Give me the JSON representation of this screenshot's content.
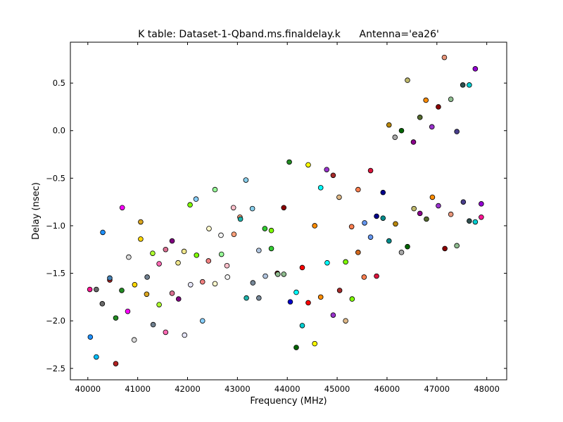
{
  "chart_data": {
    "type": "scatter",
    "title": "K table: Dataset-1-Qband.ms.finaldelay.k      Antenna='ea26'",
    "xlabel": "Frequency (MHz)",
    "ylabel": "Delay (nsec)",
    "xlim": [
      39650,
      48400
    ],
    "ylim": [
      -2.62,
      0.93
    ],
    "xticks": [
      40000,
      41000,
      42000,
      43000,
      44000,
      45000,
      46000,
      47000,
      48000
    ],
    "yticks": [
      -2.5,
      -2.0,
      -1.5,
      -1.0,
      -0.5,
      0.0,
      0.5
    ],
    "grid": false,
    "points": [
      {
        "x": 40040,
        "y": -1.67,
        "color": "#ff1493"
      },
      {
        "x": 40050,
        "y": -2.17,
        "color": "#1e90ff"
      },
      {
        "x": 40170,
        "y": -1.67,
        "color": "#696969"
      },
      {
        "x": 40170,
        "y": -2.38,
        "color": "#00bfff"
      },
      {
        "x": 40290,
        "y": -1.82,
        "color": "#696969"
      },
      {
        "x": 40300,
        "y": -1.07,
        "color": "#1e90ff"
      },
      {
        "x": 40440,
        "y": -1.57,
        "color": "#b22222"
      },
      {
        "x": 40440,
        "y": -1.55,
        "color": "#4682b4"
      },
      {
        "x": 40560,
        "y": -1.97,
        "color": "#228b22"
      },
      {
        "x": 40560,
        "y": -2.45,
        "color": "#b22222"
      },
      {
        "x": 40680,
        "y": -1.68,
        "color": "#228b22"
      },
      {
        "x": 40690,
        "y": -0.81,
        "color": "#ff00ff"
      },
      {
        "x": 40800,
        "y": -1.9,
        "color": "#ff00ff"
      },
      {
        "x": 40820,
        "y": -1.33,
        "color": "#dcdcdc"
      },
      {
        "x": 40930,
        "y": -2.2,
        "color": "#dcdcdc"
      },
      {
        "x": 40940,
        "y": -1.62,
        "color": "#ffd700"
      },
      {
        "x": 41060,
        "y": -0.96,
        "color": "#daa520"
      },
      {
        "x": 41060,
        "y": -1.14,
        "color": "#ffd700"
      },
      {
        "x": 41180,
        "y": -1.72,
        "color": "#daa520"
      },
      {
        "x": 41190,
        "y": -1.54,
        "color": "#708090"
      },
      {
        "x": 41300,
        "y": -1.29,
        "color": "#adff2f"
      },
      {
        "x": 41310,
        "y": -2.04,
        "color": "#708090"
      },
      {
        "x": 41430,
        "y": -1.4,
        "color": "#ff69b4"
      },
      {
        "x": 41430,
        "y": -1.83,
        "color": "#adff2f"
      },
      {
        "x": 41560,
        "y": -1.25,
        "color": "#db7093"
      },
      {
        "x": 41560,
        "y": -2.12,
        "color": "#ff69b4"
      },
      {
        "x": 41690,
        "y": -1.16,
        "color": "#800080"
      },
      {
        "x": 41690,
        "y": -1.71,
        "color": "#db7093"
      },
      {
        "x": 41810,
        "y": -1.39,
        "color": "#f0e68c"
      },
      {
        "x": 41820,
        "y": -1.77,
        "color": "#800080"
      },
      {
        "x": 41930,
        "y": -1.27,
        "color": "#f0e68c"
      },
      {
        "x": 41940,
        "y": -2.15,
        "color": "#e6e6fa"
      },
      {
        "x": 42050,
        "y": -0.78,
        "color": "#7fff00"
      },
      {
        "x": 42060,
        "y": -1.62,
        "color": "#e6e6fa"
      },
      {
        "x": 42170,
        "y": -0.72,
        "color": "#87cefa"
      },
      {
        "x": 42180,
        "y": -1.31,
        "color": "#7fff00"
      },
      {
        "x": 42300,
        "y": -1.59,
        "color": "#f08080"
      },
      {
        "x": 42300,
        "y": -2.0,
        "color": "#87cefa"
      },
      {
        "x": 42420,
        "y": -1.37,
        "color": "#f08080"
      },
      {
        "x": 42430,
        "y": -1.03,
        "color": "#fffacd"
      },
      {
        "x": 42550,
        "y": -0.62,
        "color": "#98fb98"
      },
      {
        "x": 42550,
        "y": -1.61,
        "color": "#fffacd"
      },
      {
        "x": 42670,
        "y": -1.1,
        "color": "#f5f5f5"
      },
      {
        "x": 42680,
        "y": -1.3,
        "color": "#98fb98"
      },
      {
        "x": 42790,
        "y": -1.42,
        "color": "#ffc0cb"
      },
      {
        "x": 42800,
        "y": -1.54,
        "color": "#f5f5f5"
      },
      {
        "x": 42920,
        "y": -0.81,
        "color": "#ffc0cb"
      },
      {
        "x": 42930,
        "y": -1.09,
        "color": "#ffa07a"
      },
      {
        "x": 43050,
        "y": -0.91,
        "color": "#ffa07a"
      },
      {
        "x": 43060,
        "y": -0.93,
        "color": "#20b2aa"
      },
      {
        "x": 43170,
        "y": -0.52,
        "color": "#87ceeb"
      },
      {
        "x": 43180,
        "y": -1.76,
        "color": "#20b2aa"
      },
      {
        "x": 43300,
        "y": -0.82,
        "color": "#87ceeb"
      },
      {
        "x": 43310,
        "y": -1.6,
        "color": "#778899"
      },
      {
        "x": 43430,
        "y": -1.26,
        "color": "#b0c4de"
      },
      {
        "x": 43430,
        "y": -1.76,
        "color": "#778899"
      },
      {
        "x": 43550,
        "y": -1.03,
        "color": "#32cd32"
      },
      {
        "x": 43560,
        "y": -1.53,
        "color": "#b0c4de"
      },
      {
        "x": 43680,
        "y": -1.24,
        "color": "#32cd32"
      },
      {
        "x": 43680,
        "y": -1.05,
        "color": "#7cfc00"
      },
      {
        "x": 43800,
        "y": -1.5,
        "color": "#8b0000"
      },
      {
        "x": 43810,
        "y": -1.51,
        "color": "#8fbc8f"
      },
      {
        "x": 43930,
        "y": -0.81,
        "color": "#8b0000"
      },
      {
        "x": 43930,
        "y": -1.51,
        "color": "#8fbc8f"
      },
      {
        "x": 44040,
        "y": -0.33,
        "color": "#228b22"
      },
      {
        "x": 44060,
        "y": -1.8,
        "color": "#0000cd"
      },
      {
        "x": 44180,
        "y": -1.7,
        "color": "#00ffff"
      },
      {
        "x": 44180,
        "y": -2.28,
        "color": "#006400"
      },
      {
        "x": 44300,
        "y": -1.44,
        "color": "#ff0000"
      },
      {
        "x": 44300,
        "y": -2.05,
        "color": "#00ced1"
      },
      {
        "x": 44420,
        "y": -1.81,
        "color": "#ff0000"
      },
      {
        "x": 44420,
        "y": -0.36,
        "color": "#ffff00"
      },
      {
        "x": 44550,
        "y": -1.0,
        "color": "#ff8c00"
      },
      {
        "x": 44550,
        "y": -2.24,
        "color": "#ffff00"
      },
      {
        "x": 44670,
        "y": -0.6,
        "color": "#00ffff"
      },
      {
        "x": 44670,
        "y": -1.75,
        "color": "#ff8c00"
      },
      {
        "x": 44790,
        "y": -0.41,
        "color": "#9932cc"
      },
      {
        "x": 44800,
        "y": -1.39,
        "color": "#00ffff"
      },
      {
        "x": 44920,
        "y": -0.47,
        "color": "#a52a2a"
      },
      {
        "x": 44920,
        "y": -1.94,
        "color": "#9932cc"
      },
      {
        "x": 45040,
        "y": -0.7,
        "color": "#deb887"
      },
      {
        "x": 45050,
        "y": -1.68,
        "color": "#a52a2a"
      },
      {
        "x": 45170,
        "y": -1.38,
        "color": "#7fff00"
      },
      {
        "x": 45170,
        "y": -2.0,
        "color": "#deb887"
      },
      {
        "x": 45290,
        "y": -1.01,
        "color": "#ff7f50"
      },
      {
        "x": 45300,
        "y": -1.77,
        "color": "#7fff00"
      },
      {
        "x": 45420,
        "y": -0.62,
        "color": "#ff7f50"
      },
      {
        "x": 45420,
        "y": -1.28,
        "color": "#d2691e"
      },
      {
        "x": 45540,
        "y": -1.54,
        "color": "#ff7f50"
      },
      {
        "x": 45550,
        "y": -0.97,
        "color": "#6495ed"
      },
      {
        "x": 45670,
        "y": -0.42,
        "color": "#dc143c"
      },
      {
        "x": 45670,
        "y": -1.12,
        "color": "#6495ed"
      },
      {
        "x": 45790,
        "y": -1.53,
        "color": "#dc143c"
      },
      {
        "x": 45790,
        "y": -0.9,
        "color": "#00008b"
      },
      {
        "x": 45920,
        "y": -0.65,
        "color": "#00008b"
      },
      {
        "x": 45920,
        "y": -0.92,
        "color": "#008b8b"
      },
      {
        "x": 46040,
        "y": 0.06,
        "color": "#b8860b"
      },
      {
        "x": 46040,
        "y": -1.16,
        "color": "#008b8b"
      },
      {
        "x": 46160,
        "y": -0.07,
        "color": "#a9a9a9"
      },
      {
        "x": 46170,
        "y": -0.98,
        "color": "#b8860b"
      },
      {
        "x": 46290,
        "y": 0.0,
        "color": "#006400"
      },
      {
        "x": 46290,
        "y": -1.28,
        "color": "#a9a9a9"
      },
      {
        "x": 46410,
        "y": 0.53,
        "color": "#bdb76b"
      },
      {
        "x": 46410,
        "y": -1.22,
        "color": "#006400"
      },
      {
        "x": 46530,
        "y": -0.12,
        "color": "#8b008b"
      },
      {
        "x": 46540,
        "y": -0.82,
        "color": "#bdb76b"
      },
      {
        "x": 46660,
        "y": 0.14,
        "color": "#556b2f"
      },
      {
        "x": 46660,
        "y": -0.87,
        "color": "#8b008b"
      },
      {
        "x": 46780,
        "y": 0.32,
        "color": "#ff8c00"
      },
      {
        "x": 46790,
        "y": -0.93,
        "color": "#556b2f"
      },
      {
        "x": 46900,
        "y": 0.04,
        "color": "#9932cc"
      },
      {
        "x": 46910,
        "y": -0.7,
        "color": "#ff8c00"
      },
      {
        "x": 47030,
        "y": 0.25,
        "color": "#8b0000"
      },
      {
        "x": 47030,
        "y": -0.79,
        "color": "#9932cc"
      },
      {
        "x": 47150,
        "y": 0.77,
        "color": "#e9967a"
      },
      {
        "x": 47160,
        "y": -1.24,
        "color": "#8b0000"
      },
      {
        "x": 47280,
        "y": 0.33,
        "color": "#8fbc8f"
      },
      {
        "x": 47280,
        "y": -0.88,
        "color": "#e9967a"
      },
      {
        "x": 47400,
        "y": -0.01,
        "color": "#483d8b"
      },
      {
        "x": 47400,
        "y": -1.21,
        "color": "#8fbc8f"
      },
      {
        "x": 47520,
        "y": 0.48,
        "color": "#2f4f4f"
      },
      {
        "x": 47530,
        "y": -0.75,
        "color": "#483d8b"
      },
      {
        "x": 47650,
        "y": 0.48,
        "color": "#00ced1"
      },
      {
        "x": 47650,
        "y": -0.95,
        "color": "#2f4f4f"
      },
      {
        "x": 47770,
        "y": 0.65,
        "color": "#9400d3"
      },
      {
        "x": 47770,
        "y": -0.96,
        "color": "#00ced1"
      },
      {
        "x": 47890,
        "y": -0.91,
        "color": "#ff1493"
      },
      {
        "x": 47890,
        "y": -0.77,
        "color": "#9400d3"
      }
    ]
  }
}
